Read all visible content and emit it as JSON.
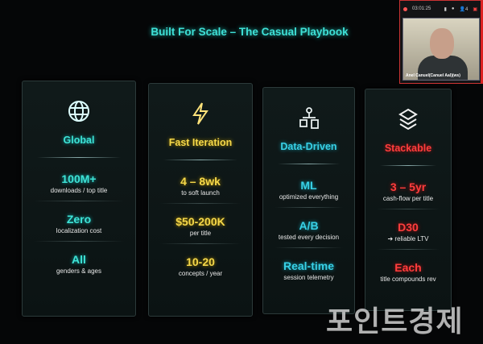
{
  "slide": {
    "title": "Built For Scale – The Casual Playbook",
    "cards": [
      {
        "heading": "Global",
        "icon": "globe-icon",
        "color": "#3ee3d6",
        "stats": [
          {
            "value": "100M+",
            "label": "downloads / top title"
          },
          {
            "value": "Zero",
            "label": "localization cost"
          },
          {
            "value": "All",
            "label": "genders & ages"
          }
        ]
      },
      {
        "heading": "Fast Iteration",
        "icon": "lightning-icon",
        "color": "#f5d84a",
        "stats": [
          {
            "value": "4 – 8wk",
            "label": "to soft launch"
          },
          {
            "value": "$50-200K",
            "label": "per title"
          },
          {
            "value": "10-20",
            "label": "concepts / year"
          }
        ]
      },
      {
        "heading": "Data-Driven",
        "icon": "data-network-icon",
        "color": "#38d0e6",
        "stats": [
          {
            "value": "ML",
            "label": "optimized everything"
          },
          {
            "value": "A/B",
            "label": "tested every decision"
          },
          {
            "value": "Real-time",
            "label": "session telemetry"
          }
        ]
      },
      {
        "heading": "Stackable",
        "icon": "layers-icon",
        "color": "#ff3d3d",
        "stats": [
          {
            "value": "3 – 5yr",
            "label": "cash-flow per title"
          },
          {
            "value": "D30",
            "label": "➔ reliable LTV"
          },
          {
            "value": "Each",
            "label": "title compounds rev"
          }
        ]
      }
    ]
  },
  "meeting": {
    "timer": "03:01:25",
    "participant_count": "4",
    "participant_name": "Anel Canuel(Canuel Aal)(ws)"
  },
  "watermark": "포인트경제"
}
